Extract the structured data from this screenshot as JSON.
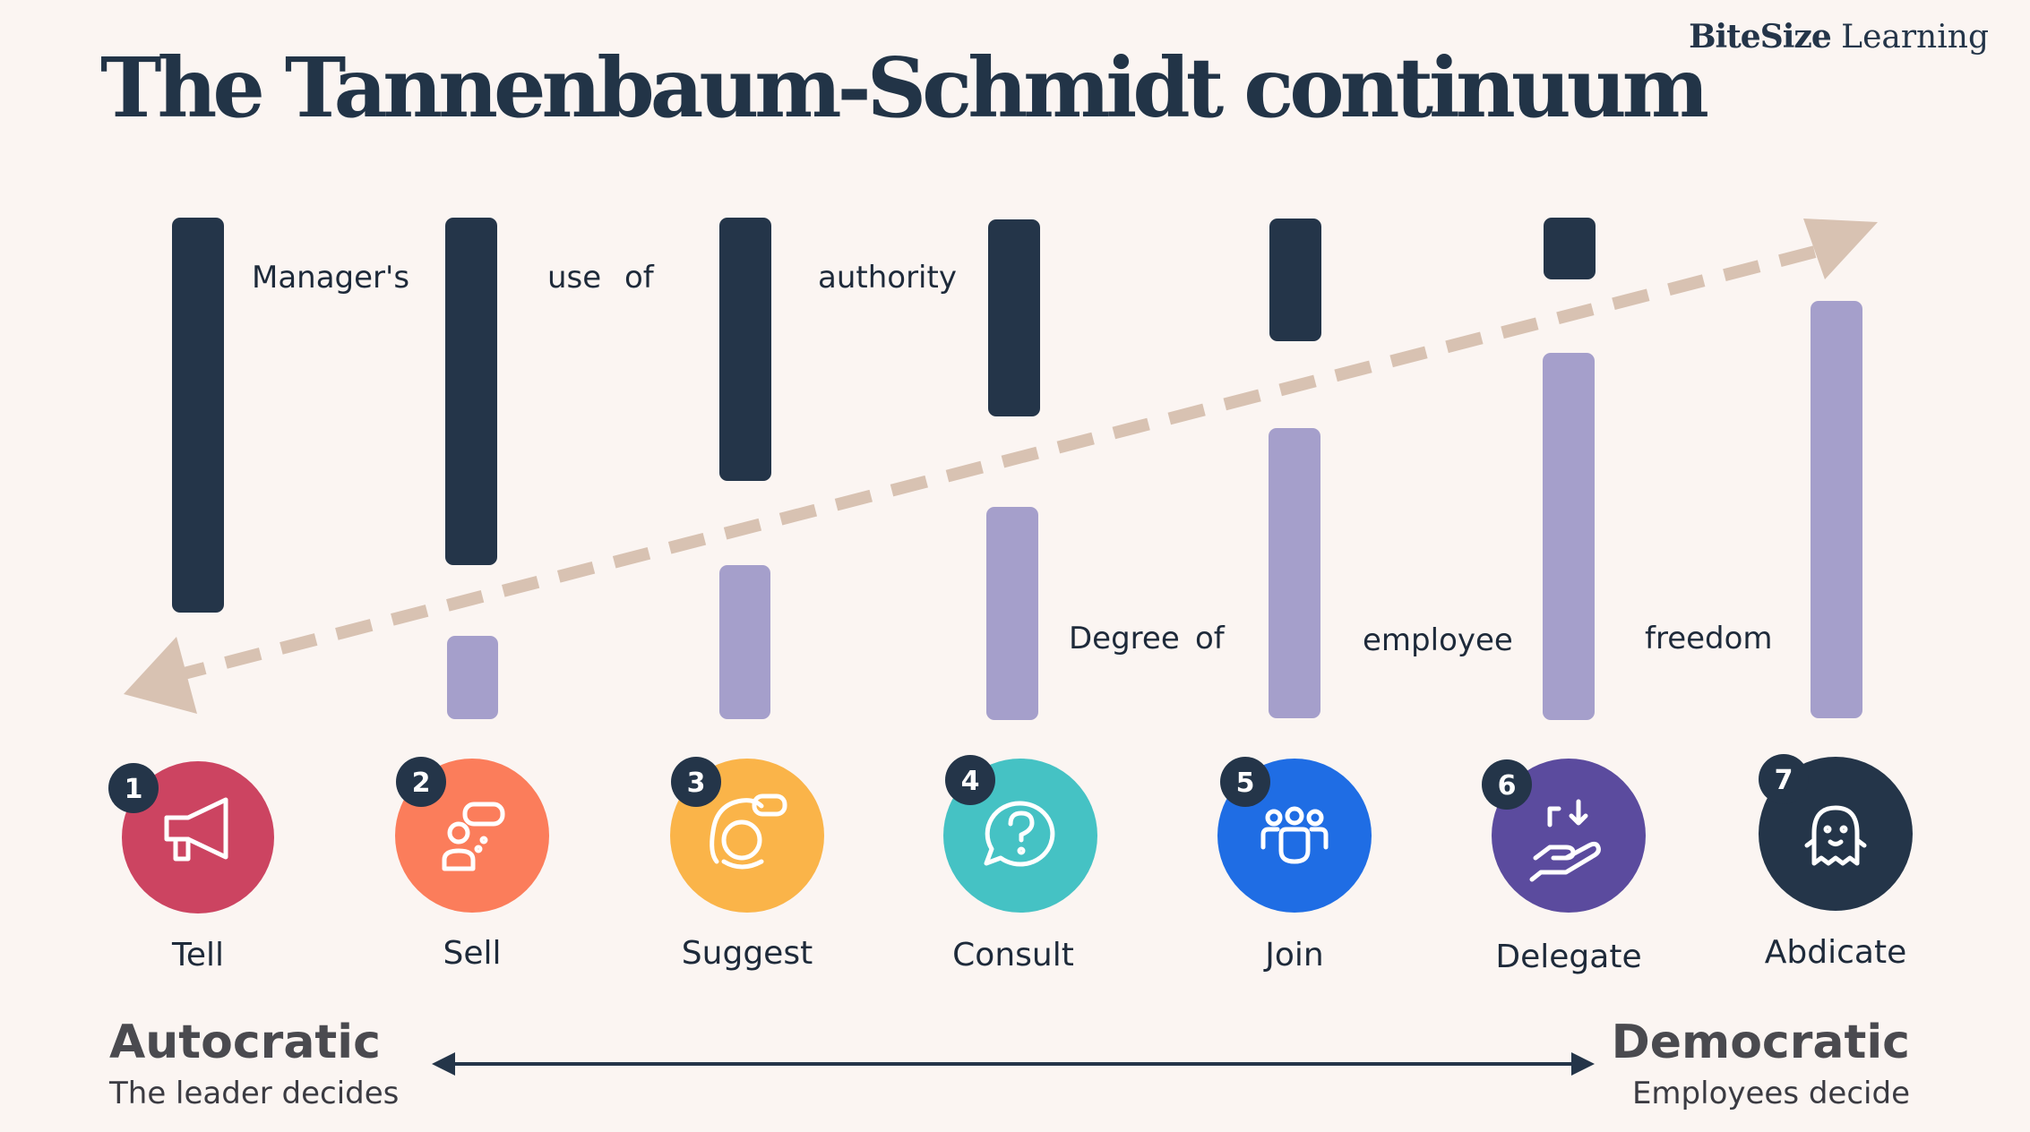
{
  "title": "The Tannenbaum-Schmidt continuum",
  "brand": {
    "bold": "BiteSize",
    "rest": " Learning"
  },
  "authority_words": [
    "Manager's",
    "use",
    "of",
    "authority"
  ],
  "freedom_words": [
    "Degree",
    "of",
    "employee",
    "freedom"
  ],
  "steps": [
    {
      "num": "1",
      "label": "Tell",
      "icon": "megaphone-icon",
      "color": "#cc4461"
    },
    {
      "num": "2",
      "label": "Sell",
      "icon": "speech-bubble-person-icon",
      "color": "#fb7d5b"
    },
    {
      "num": "3",
      "label": "Suggest",
      "icon": "person-speaking-icon",
      "color": "#fab449"
    },
    {
      "num": "4",
      "label": "Consult",
      "icon": "question-bubble-icon",
      "color": "#45c2c4"
    },
    {
      "num": "5",
      "label": "Join",
      "icon": "team-icon",
      "color": "#1f6de4"
    },
    {
      "num": "6",
      "label": "Delegate",
      "icon": "hand-receive-icon",
      "color": "#5b4b9e"
    },
    {
      "num": "7",
      "label": "Abdicate",
      "icon": "ghost-icon",
      "color": "#243549"
    }
  ],
  "left_end": {
    "title": "Autocratic",
    "subtitle": "The leader decides"
  },
  "right_end": {
    "title": "Democratic",
    "subtitle": "Employees decide"
  },
  "colors": {
    "dark_bar": "#243549",
    "light_bar": "#a59fcb",
    "dashed_arrow": "#d8c2b2",
    "background": "#fbf5f2"
  }
}
